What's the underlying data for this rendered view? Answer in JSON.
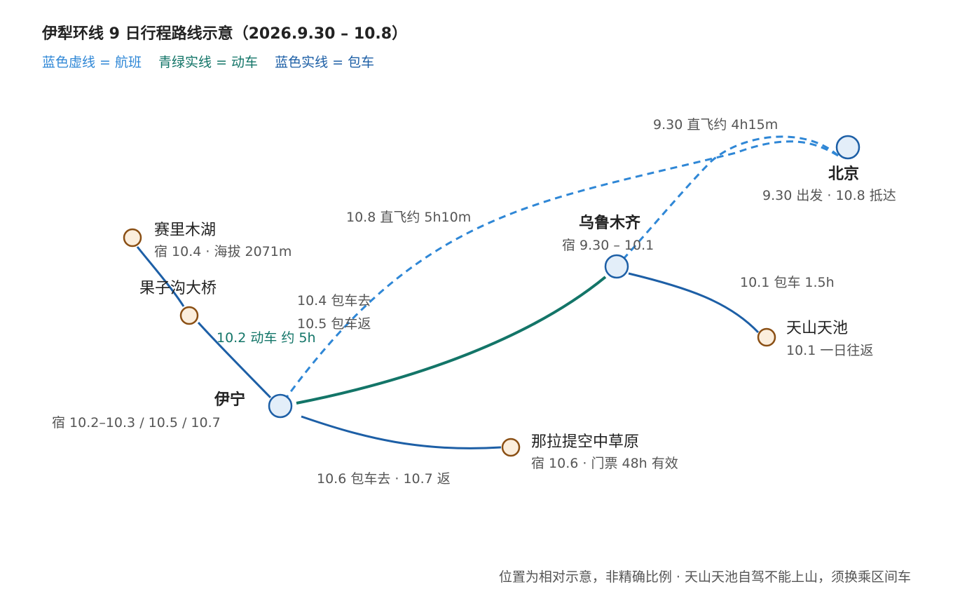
{
  "title": "伊犁环线 9 日行程路线示意（2026.9.30 – 10.8）",
  "legend": {
    "flight": "蓝色虚线 = 航班",
    "train": "青绿实线 = 动车",
    "car": "蓝色实线 = 包车"
  },
  "colors": {
    "flight": "#2f87d6",
    "train": "#137568",
    "car": "#1d5fa6",
    "hub_fill": "#e3eef9",
    "hub_stroke": "#1d5fa6",
    "stop_fill": "#fbeedd",
    "stop_stroke": "#8a4f14"
  },
  "nodes": {
    "beijing": {
      "name": "北京",
      "sub": "9.30 出发 · 10.8 抵达"
    },
    "urumqi": {
      "name": "乌鲁木齐",
      "sub": "宿 9.30 – 10.1"
    },
    "yining": {
      "name": "伊宁",
      "sub": "宿 10.2–10.3 / 10.5 / 10.7"
    },
    "sayram": {
      "name": "赛里木湖",
      "sub": "宿 10.4 · 海拔 2071m"
    },
    "guozigou": {
      "name": "果子沟大桥"
    },
    "tianchi": {
      "name": "天山天池",
      "sub": "10.1 一日往返"
    },
    "nalati": {
      "name": "那拉提空中草原",
      "sub": "宿 10.6 · 门票 48h 有效"
    }
  },
  "edges": {
    "flight_out": "9.30 直飞约 4h15m",
    "flight_back": "10.8 直飞约 5h10m",
    "train": "10.2 动车 约 5h",
    "tianchi_car": "10.1 包车 1.5h",
    "sayram_car_go": "10.4 包车去",
    "sayram_car_back": "10.5 包车返",
    "nalati_car": "10.6 包车去 · 10.7 返"
  },
  "footnote": "位置为相对示意，非精确比例 · 天山天池自驾不能上山，须换乘区间车"
}
